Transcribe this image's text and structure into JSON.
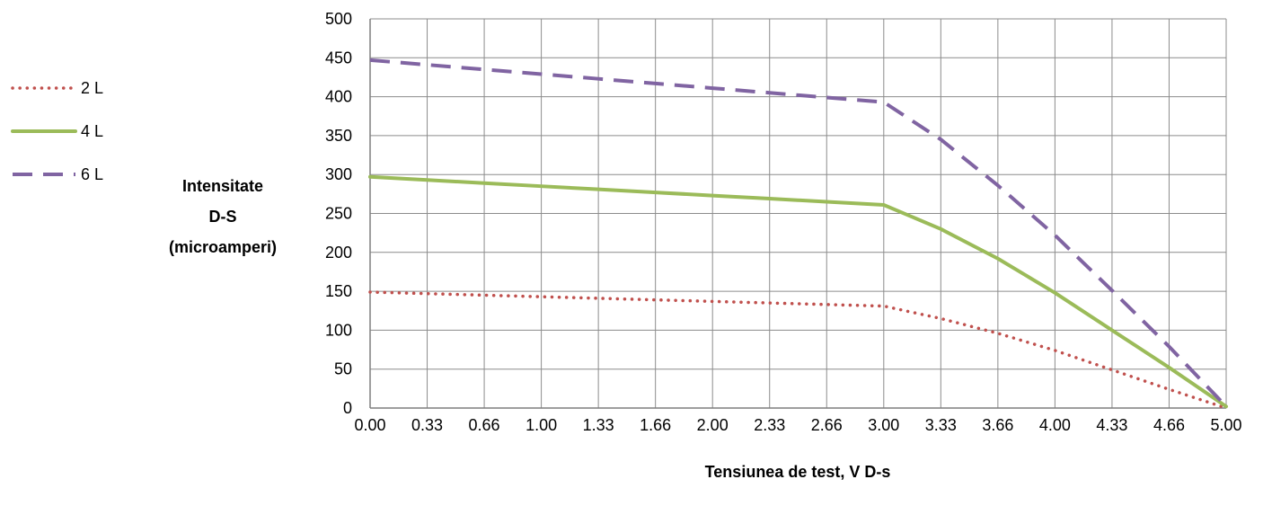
{
  "chart_data": {
    "type": "line",
    "title": "",
    "xlabel": "Tensiunea de test, V D-s",
    "ylabel_lines": [
      "Intensitate",
      "D-S",
      "(microamperi)"
    ],
    "categories": [
      "0.00",
      "0.33",
      "0.66",
      "1.00",
      "1.33",
      "1.66",
      "2.00",
      "2.33",
      "2.66",
      "3.00",
      "3.33",
      "3.66",
      "4.00",
      "4.33",
      "4.66",
      "5.00"
    ],
    "ylim": [
      0,
      500
    ],
    "yticks": [
      0,
      50,
      100,
      150,
      200,
      250,
      300,
      350,
      400,
      450,
      500
    ],
    "grid": true,
    "legend_position": "left",
    "series": [
      {
        "name": "2 L",
        "style": "dotted",
        "color": "#C0504D",
        "values": [
          149,
          147,
          145,
          143,
          141,
          139,
          137,
          135,
          133,
          131,
          115,
          96,
          74,
          49,
          24,
          0
        ]
      },
      {
        "name": "4 L",
        "style": "solid",
        "color": "#9BBB59",
        "values": [
          297,
          293,
          289,
          285,
          281,
          277,
          273,
          269,
          265,
          261,
          230,
          192,
          148,
          100,
          52,
          2
        ]
      },
      {
        "name": "6 L",
        "style": "dashed",
        "color": "#8064A2",
        "values": [
          447,
          441,
          435,
          429,
          423,
          417,
          411,
          405,
          399,
          393,
          345,
          286,
          222,
          151,
          79,
          2
        ]
      }
    ]
  }
}
